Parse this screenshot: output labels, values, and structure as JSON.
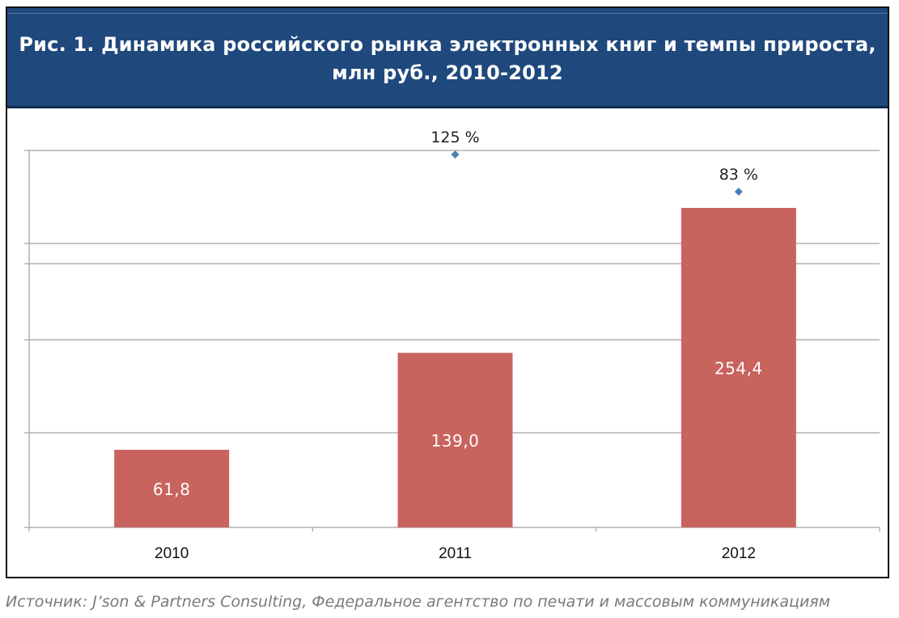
{
  "figure": {
    "title_line1": "Рис. 1. Динамика российского рынка электронных книг и темпы прироста,",
    "title_line2": "млн руб., 2010-2012",
    "header_color": "#1f497d",
    "source": "Источник: J’son & Partners Consulting, Федеральное агентство по печати и массовым коммуникациям"
  },
  "chart_data": {
    "type": "bar",
    "categories": [
      "2010",
      "2011",
      "2012"
    ],
    "series": [
      {
        "values": [
          61.8,
          139.0,
          254.4
        ],
        "labels": [
          "61,8",
          "139,0",
          "254,4"
        ],
        "color": "#c9635e"
      }
    ],
    "growth": {
      "type": "scatter",
      "categories": [
        "2011",
        "2012"
      ],
      "values": [
        125,
        83
      ],
      "labels": [
        "125 %",
        "83 %"
      ],
      "color": "#4a7fb0"
    },
    "grid": true,
    "axis_color": "#b0b0b0"
  }
}
